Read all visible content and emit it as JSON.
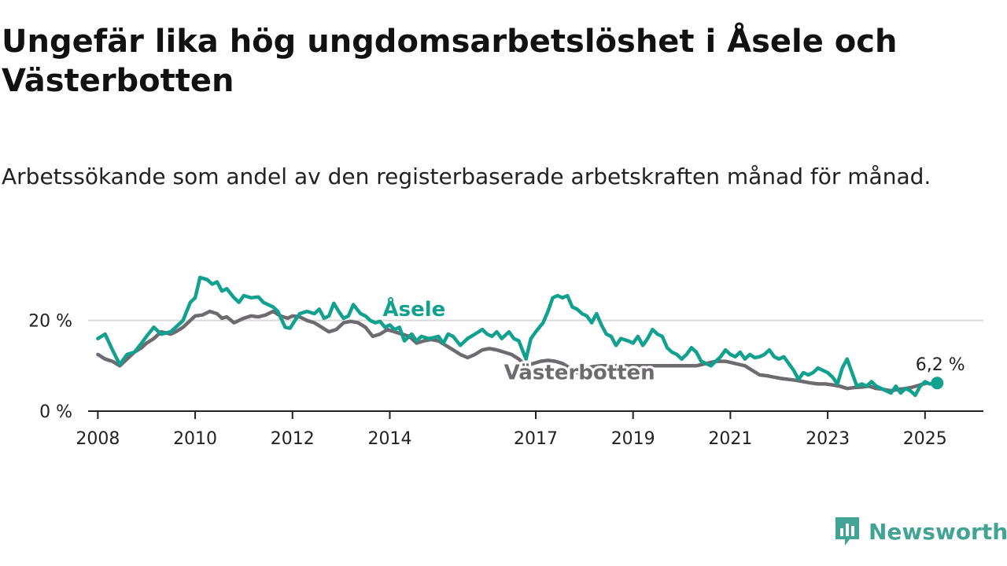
{
  "title": "Ungefär lika hög ungdomsarbetslöshet i Åsele och Västerbotten",
  "subtitle": "Arbetssökande som andel av den registerbaserade arbetskraften månad för månad.",
  "brand": {
    "name": "Newsworthy",
    "icon": "newsworthy-logo-icon",
    "color": "#43a395"
  },
  "chart_data": {
    "type": "line",
    "title": "Ungefär lika hög ungdomsarbetslöshet i Åsele och Västerbotten",
    "subtitle": "Arbetssökande som andel av den registerbaserade arbetskraften månad för månad.",
    "xlabel": "",
    "ylabel": "",
    "xlim": [
      2007.8,
      2026.2
    ],
    "ylim": [
      0,
      30
    ],
    "x_ticks": [
      {
        "value": 2008,
        "label": "2008"
      },
      {
        "value": 2010,
        "label": "2010"
      },
      {
        "value": 2012,
        "label": "2012"
      },
      {
        "value": 2014,
        "label": "2014"
      },
      {
        "value": 2017,
        "label": "2017"
      },
      {
        "value": 2019,
        "label": "2019"
      },
      {
        "value": 2021,
        "label": "2021"
      },
      {
        "value": 2023,
        "label": "2023"
      },
      {
        "value": 2025,
        "label": "2025"
      }
    ],
    "y_ticks": [
      {
        "value": 0,
        "label": "0 %"
      },
      {
        "value": 20,
        "label": "20 %"
      }
    ],
    "gridlines_y": [
      20
    ],
    "legend": "inline labels",
    "end_label": {
      "series": 0,
      "text": "6,2 %",
      "x": 2025.25,
      "y": 6.2
    },
    "series": [
      {
        "name": "Åsele",
        "color": "#12a08f",
        "label_at": [
          2014.5,
          21.0
        ],
        "points": [
          [
            2008.0,
            16.0
          ],
          [
            2008.15,
            17.0
          ],
          [
            2008.3,
            13.5
          ],
          [
            2008.45,
            10.3
          ],
          [
            2008.6,
            12.5
          ],
          [
            2008.75,
            13.0
          ],
          [
            2008.9,
            15.0
          ],
          [
            2009.0,
            16.5
          ],
          [
            2009.15,
            18.5
          ],
          [
            2009.3,
            17.0
          ],
          [
            2009.5,
            17.5
          ],
          [
            2009.6,
            18.5
          ],
          [
            2009.75,
            20.0
          ],
          [
            2009.9,
            24.0
          ],
          [
            2010.0,
            25.0
          ],
          [
            2010.1,
            29.5
          ],
          [
            2010.25,
            29.0
          ],
          [
            2010.35,
            28.0
          ],
          [
            2010.45,
            28.5
          ],
          [
            2010.55,
            26.5
          ],
          [
            2010.65,
            27.0
          ],
          [
            2010.8,
            25.0
          ],
          [
            2010.9,
            24.0
          ],
          [
            2011.0,
            25.5
          ],
          [
            2011.15,
            25.0
          ],
          [
            2011.3,
            25.2
          ],
          [
            2011.4,
            24.0
          ],
          [
            2011.5,
            23.5
          ],
          [
            2011.6,
            23.0
          ],
          [
            2011.7,
            22.0
          ],
          [
            2011.85,
            18.5
          ],
          [
            2011.95,
            18.3
          ],
          [
            2012.05,
            20.0
          ],
          [
            2012.15,
            21.5
          ],
          [
            2012.3,
            22.0
          ],
          [
            2012.45,
            21.5
          ],
          [
            2012.55,
            22.5
          ],
          [
            2012.65,
            20.5
          ],
          [
            2012.75,
            21.0
          ],
          [
            2012.85,
            23.8
          ],
          [
            2012.95,
            22.0
          ],
          [
            2013.05,
            20.5
          ],
          [
            2013.15,
            21.0
          ],
          [
            2013.25,
            23.5
          ],
          [
            2013.4,
            21.5
          ],
          [
            2013.5,
            21.0
          ],
          [
            2013.6,
            20.0
          ],
          [
            2013.7,
            19.5
          ],
          [
            2013.8,
            19.8
          ],
          [
            2013.9,
            18.5
          ],
          [
            2014.0,
            19.0
          ],
          [
            2014.1,
            18.0
          ],
          [
            2014.2,
            18.5
          ],
          [
            2014.3,
            15.5
          ],
          [
            2014.45,
            17.0
          ],
          [
            2014.55,
            15.5
          ],
          [
            2014.65,
            16.5
          ],
          [
            2014.8,
            16.0
          ],
          [
            2014.9,
            16.2
          ],
          [
            2015.0,
            16.5
          ],
          [
            2015.1,
            15.0
          ],
          [
            2015.2,
            17.0
          ],
          [
            2015.3,
            16.5
          ],
          [
            2015.45,
            14.5
          ],
          [
            2015.6,
            16.0
          ],
          [
            2015.75,
            17.0
          ],
          [
            2015.9,
            18.0
          ],
          [
            2016.0,
            17.0
          ],
          [
            2016.1,
            16.5
          ],
          [
            2016.2,
            17.5
          ],
          [
            2016.3,
            16.0
          ],
          [
            2016.45,
            17.5
          ],
          [
            2016.55,
            16.0
          ],
          [
            2016.65,
            15.5
          ],
          [
            2016.8,
            11.5
          ],
          [
            2016.9,
            16.0
          ],
          [
            2017.0,
            17.5
          ],
          [
            2017.15,
            19.5
          ],
          [
            2017.25,
            22.0
          ],
          [
            2017.35,
            25.0
          ],
          [
            2017.45,
            25.5
          ],
          [
            2017.55,
            25.0
          ],
          [
            2017.65,
            25.5
          ],
          [
            2017.75,
            23.0
          ],
          [
            2017.85,
            22.5
          ],
          [
            2017.95,
            21.5
          ],
          [
            2018.05,
            21.0
          ],
          [
            2018.15,
            19.5
          ],
          [
            2018.25,
            21.5
          ],
          [
            2018.35,
            19.0
          ],
          [
            2018.45,
            17.0
          ],
          [
            2018.55,
            16.5
          ],
          [
            2018.65,
            14.5
          ],
          [
            2018.75,
            16.0
          ],
          [
            2018.9,
            15.5
          ],
          [
            2019.0,
            15.0
          ],
          [
            2019.1,
            16.5
          ],
          [
            2019.2,
            14.5
          ],
          [
            2019.3,
            16.0
          ],
          [
            2019.4,
            18.0
          ],
          [
            2019.5,
            17.0
          ],
          [
            2019.6,
            16.5
          ],
          [
            2019.7,
            14.0
          ],
          [
            2019.8,
            13.0
          ],
          [
            2019.9,
            12.5
          ],
          [
            2020.0,
            11.5
          ],
          [
            2020.1,
            12.5
          ],
          [
            2020.2,
            14.0
          ],
          [
            2020.3,
            13.0
          ],
          [
            2020.4,
            11.0
          ],
          [
            2020.5,
            10.5
          ],
          [
            2020.6,
            10.0
          ],
          [
            2020.7,
            11.0
          ],
          [
            2020.8,
            12.0
          ],
          [
            2020.9,
            13.5
          ],
          [
            2021.0,
            12.5
          ],
          [
            2021.1,
            12.0
          ],
          [
            2021.2,
            13.0
          ],
          [
            2021.3,
            11.5
          ],
          [
            2021.4,
            12.5
          ],
          [
            2021.5,
            11.8
          ],
          [
            2021.6,
            12.0
          ],
          [
            2021.7,
            12.5
          ],
          [
            2021.8,
            13.5
          ],
          [
            2021.9,
            12.0
          ],
          [
            2022.0,
            11.5
          ],
          [
            2022.1,
            12.0
          ],
          [
            2022.2,
            10.5
          ],
          [
            2022.3,
            9.0
          ],
          [
            2022.4,
            7.0
          ],
          [
            2022.5,
            8.5
          ],
          [
            2022.6,
            8.0
          ],
          [
            2022.7,
            8.5
          ],
          [
            2022.8,
            9.5
          ],
          [
            2022.9,
            9.0
          ],
          [
            2023.0,
            8.5
          ],
          [
            2023.1,
            7.5
          ],
          [
            2023.2,
            6.0
          ],
          [
            2023.3,
            9.5
          ],
          [
            2023.4,
            11.5
          ],
          [
            2023.5,
            8.5
          ],
          [
            2023.6,
            5.5
          ],
          [
            2023.7,
            6.0
          ],
          [
            2023.8,
            5.5
          ],
          [
            2023.9,
            6.5
          ],
          [
            2024.0,
            5.5
          ],
          [
            2024.1,
            5.0
          ],
          [
            2024.2,
            4.5
          ],
          [
            2024.3,
            4.0
          ],
          [
            2024.4,
            5.5
          ],
          [
            2024.5,
            4.0
          ],
          [
            2024.6,
            5.0
          ],
          [
            2024.7,
            4.5
          ],
          [
            2024.8,
            3.5
          ],
          [
            2024.9,
            5.5
          ],
          [
            2025.0,
            6.5
          ],
          [
            2025.1,
            6.0
          ],
          [
            2025.25,
            6.2
          ]
        ]
      },
      {
        "name": "Västerbotten",
        "color": "#6d6a70",
        "label_at": [
          2017.9,
          7.0
        ],
        "points": [
          [
            2008.0,
            12.5
          ],
          [
            2008.15,
            11.5
          ],
          [
            2008.3,
            11.0
          ],
          [
            2008.45,
            10.0
          ],
          [
            2008.6,
            11.5
          ],
          [
            2008.75,
            13.0
          ],
          [
            2008.9,
            14.0
          ],
          [
            2009.0,
            15.0
          ],
          [
            2009.15,
            16.0
          ],
          [
            2009.3,
            17.5
          ],
          [
            2009.5,
            17.0
          ],
          [
            2009.6,
            17.5
          ],
          [
            2009.75,
            18.5
          ],
          [
            2009.9,
            20.0
          ],
          [
            2010.0,
            21.0
          ],
          [
            2010.15,
            21.2
          ],
          [
            2010.3,
            22.0
          ],
          [
            2010.45,
            21.5
          ],
          [
            2010.55,
            20.5
          ],
          [
            2010.65,
            20.8
          ],
          [
            2010.8,
            19.5
          ],
          [
            2010.9,
            20.0
          ],
          [
            2011.0,
            20.5
          ],
          [
            2011.15,
            21.0
          ],
          [
            2011.3,
            20.8
          ],
          [
            2011.45,
            21.2
          ],
          [
            2011.6,
            22.0
          ],
          [
            2011.75,
            21.0
          ],
          [
            2011.9,
            20.5
          ],
          [
            2012.0,
            21.0
          ],
          [
            2012.15,
            20.8
          ],
          [
            2012.3,
            20.0
          ],
          [
            2012.45,
            19.5
          ],
          [
            2012.6,
            18.5
          ],
          [
            2012.75,
            17.5
          ],
          [
            2012.9,
            18.0
          ],
          [
            2013.05,
            19.5
          ],
          [
            2013.2,
            19.8
          ],
          [
            2013.35,
            19.5
          ],
          [
            2013.5,
            18.5
          ],
          [
            2013.65,
            16.5
          ],
          [
            2013.8,
            17.0
          ],
          [
            2013.95,
            18.0
          ],
          [
            2014.1,
            17.5
          ],
          [
            2014.25,
            17.0
          ],
          [
            2014.4,
            16.5
          ],
          [
            2014.55,
            15.0
          ],
          [
            2014.7,
            15.5
          ],
          [
            2014.85,
            15.8
          ],
          [
            2015.0,
            15.5
          ],
          [
            2015.15,
            14.5
          ],
          [
            2015.3,
            13.5
          ],
          [
            2015.45,
            12.5
          ],
          [
            2015.6,
            11.8
          ],
          [
            2015.75,
            12.5
          ],
          [
            2015.9,
            13.5
          ],
          [
            2016.05,
            13.8
          ],
          [
            2016.2,
            13.5
          ],
          [
            2016.35,
            13.0
          ],
          [
            2016.5,
            12.5
          ],
          [
            2016.65,
            11.5
          ],
          [
            2016.8,
            10.0
          ],
          [
            2016.95,
            10.5
          ],
          [
            2017.1,
            11.0
          ],
          [
            2017.25,
            11.2
          ],
          [
            2017.4,
            11.0
          ],
          [
            2017.55,
            10.5
          ],
          [
            2017.7,
            9.5
          ],
          [
            2017.85,
            8.5
          ],
          [
            2018.0,
            9.0
          ],
          [
            2018.15,
            9.8
          ],
          [
            2018.35,
            10.0
          ],
          [
            2020.3,
            10.0
          ],
          [
            2020.5,
            10.5
          ],
          [
            2020.7,
            11.0
          ],
          [
            2020.9,
            11.0
          ],
          [
            2021.1,
            10.5
          ],
          [
            2021.3,
            10.0
          ],
          [
            2021.45,
            9.0
          ],
          [
            2021.6,
            8.0
          ],
          [
            2021.75,
            7.8
          ],
          [
            2021.9,
            7.5
          ],
          [
            2022.05,
            7.2
          ],
          [
            2022.2,
            7.0
          ],
          [
            2022.35,
            6.8
          ],
          [
            2022.5,
            6.5
          ],
          [
            2022.65,
            6.2
          ],
          [
            2022.8,
            6.0
          ],
          [
            2022.95,
            6.0
          ],
          [
            2023.1,
            5.8
          ],
          [
            2023.25,
            5.5
          ],
          [
            2023.4,
            5.0
          ],
          [
            2023.55,
            5.2
          ],
          [
            2023.7,
            5.3
          ],
          [
            2023.85,
            5.5
          ],
          [
            2024.0,
            5.0
          ],
          [
            2024.15,
            4.8
          ],
          [
            2024.3,
            4.5
          ],
          [
            2024.45,
            4.8
          ],
          [
            2024.6,
            5.0
          ],
          [
            2024.75,
            5.3
          ],
          [
            2024.9,
            5.8
          ],
          [
            2025.05,
            6.2
          ]
        ]
      }
    ]
  }
}
